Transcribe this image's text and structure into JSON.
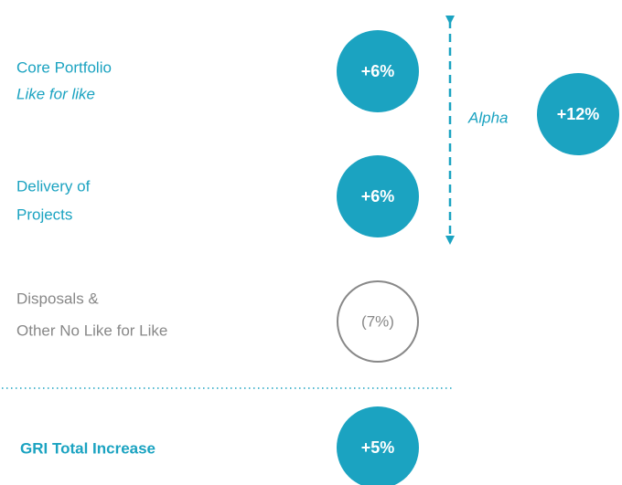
{
  "rows": [
    {
      "lines": [
        "Core Portfolio",
        "Like for like"
      ],
      "value": "+6%"
    },
    {
      "lines": [
        "Delivery of",
        "Projects"
      ],
      "value": "+6%"
    },
    {
      "lines": [
        "Disposals &",
        "Other No Like for Like"
      ],
      "value": "(7%)"
    }
  ],
  "alpha": {
    "label": "Alpha",
    "value": "+12%"
  },
  "total": {
    "label": "GRI Total Increase",
    "value": "+5%"
  }
}
